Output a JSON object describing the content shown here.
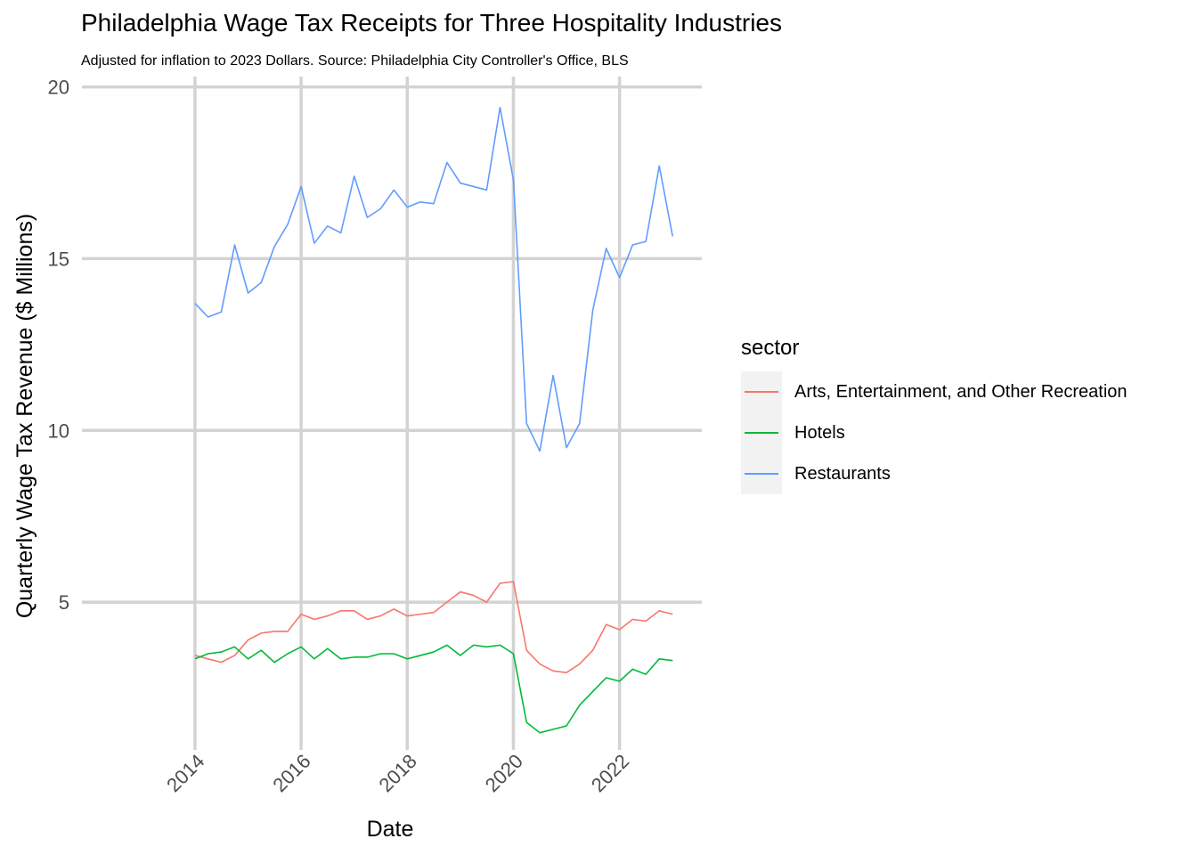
{
  "chart_data": {
    "type": "line",
    "title": "Philadelphia Wage Tax Receipts for Three Hospitality Industries",
    "subtitle": "Adjusted for inflation to 2023 Dollars. Source: Philadelphia City Controller's Office, BLS",
    "xlabel": "Date",
    "ylabel": "Quarterly Wage Tax Revenue ($ Millions)",
    "xlim": [
      "2014-01-01",
      "2023-01-01"
    ],
    "ylim": [
      0.7,
      20.3
    ],
    "x_ticks": [
      "2014",
      "2016",
      "2018",
      "2020",
      "2022"
    ],
    "y_ticks": [
      5,
      10,
      15,
      20
    ],
    "grid": true,
    "legend": {
      "title": "sector",
      "position": "right"
    },
    "x": [
      "2014-01-01",
      "2014-04-01",
      "2014-07-01",
      "2014-10-01",
      "2015-01-01",
      "2015-04-01",
      "2015-07-01",
      "2015-10-01",
      "2016-01-01",
      "2016-04-01",
      "2016-07-01",
      "2016-10-01",
      "2017-01-01",
      "2017-04-01",
      "2017-07-01",
      "2017-10-01",
      "2018-01-01",
      "2018-04-01",
      "2018-07-01",
      "2018-10-01",
      "2019-01-01",
      "2019-04-01",
      "2019-07-01",
      "2019-10-01",
      "2020-01-01",
      "2020-04-01",
      "2020-07-01",
      "2020-10-01",
      "2021-01-01",
      "2021-04-01",
      "2021-07-01",
      "2021-10-01",
      "2022-01-01",
      "2022-04-01",
      "2022-07-01",
      "2022-10-01",
      "2023-01-01"
    ],
    "series": [
      {
        "name": "Arts, Entertainment, and Other Recreation",
        "color": "#F8766D",
        "values": [
          3.45,
          3.35,
          3.25,
          3.45,
          3.9,
          4.1,
          4.15,
          4.15,
          4.65,
          4.5,
          4.6,
          4.75,
          4.75,
          4.5,
          4.6,
          4.8,
          4.6,
          4.65,
          4.7,
          5.0,
          5.3,
          5.2,
          5.0,
          5.55,
          5.6,
          3.6,
          3.2,
          3.0,
          2.95,
          3.2,
          3.6,
          4.35,
          4.2,
          4.5,
          4.45,
          4.75,
          4.65
        ]
      },
      {
        "name": "Hotels",
        "color": "#00BA38",
        "values": [
          3.35,
          3.5,
          3.55,
          3.7,
          3.35,
          3.6,
          3.25,
          3.5,
          3.7,
          3.35,
          3.65,
          3.35,
          3.4,
          3.4,
          3.5,
          3.5,
          3.35,
          3.45,
          3.55,
          3.75,
          3.45,
          3.75,
          3.7,
          3.75,
          3.5,
          1.5,
          1.2,
          1.3,
          1.4,
          2.0,
          2.4,
          2.8,
          2.7,
          3.05,
          2.9,
          3.35,
          3.3
        ]
      },
      {
        "name": "Restaurants",
        "color": "#619CFF",
        "values": [
          13.7,
          13.3,
          13.45,
          15.4,
          14.0,
          14.3,
          15.35,
          16.0,
          17.1,
          15.45,
          15.95,
          15.75,
          17.4,
          16.2,
          16.45,
          17.0,
          16.5,
          16.65,
          16.6,
          17.8,
          17.2,
          17.1,
          17.0,
          19.4,
          17.3,
          10.2,
          9.4,
          11.6,
          9.5,
          10.2,
          13.5,
          15.3,
          14.45,
          15.4,
          15.5,
          17.7,
          15.65
        ]
      }
    ]
  }
}
